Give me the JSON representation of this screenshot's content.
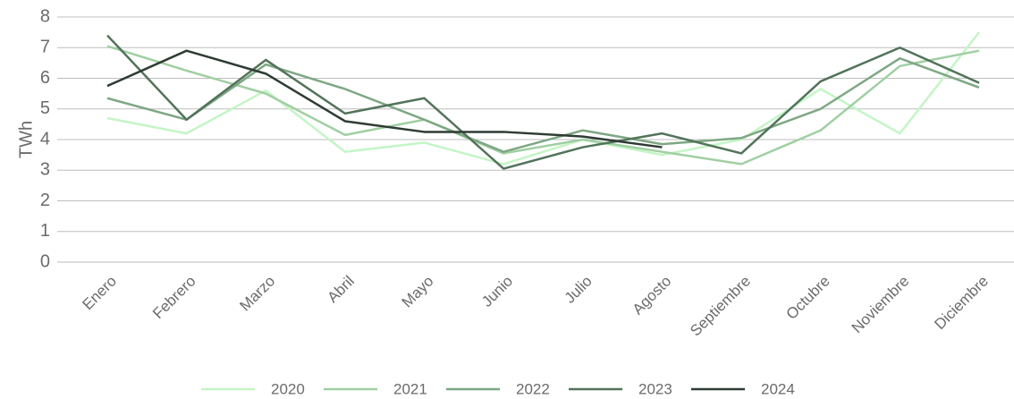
{
  "chart_data": {
    "type": "line",
    "y_label": "TWh",
    "categories": [
      "Enero",
      "Febrero",
      "Marzo",
      "Abril",
      "Mayo",
      "Junio",
      "Julio",
      "Agosto",
      "Septiembre",
      "Octubre",
      "Noviembre",
      "Diciembre"
    ],
    "series": [
      {
        "name": "2020",
        "color": "#c4f5c6",
        "values": [
          4.7,
          4.2,
          5.6,
          3.6,
          3.9,
          3.2,
          4.0,
          3.5,
          4.0,
          5.65,
          4.2,
          7.5
        ]
      },
      {
        "name": "2021",
        "color": "#a0cfa2",
        "values": [
          7.05,
          6.25,
          5.5,
          4.15,
          4.65,
          3.55,
          4.0,
          3.6,
          3.2,
          4.3,
          6.4,
          6.9
        ]
      },
      {
        "name": "2022",
        "color": "#7ea783",
        "values": [
          5.35,
          4.65,
          6.45,
          5.65,
          4.65,
          3.6,
          4.3,
          3.85,
          4.05,
          5.0,
          6.65,
          5.7
        ]
      },
      {
        "name": "2023",
        "color": "#52735a",
        "values": [
          7.4,
          4.65,
          6.6,
          4.85,
          5.35,
          3.05,
          3.75,
          4.2,
          3.55,
          5.9,
          7.0,
          5.85
        ]
      },
      {
        "name": "2024",
        "color": "#2e3c33",
        "values": [
          5.75,
          6.9,
          6.15,
          4.6,
          4.25,
          4.25,
          4.1,
          3.75,
          null,
          null,
          null,
          null
        ]
      }
    ],
    "ylim": [
      0,
      8
    ],
    "yticks": [
      0,
      1,
      2,
      3,
      4,
      5,
      6,
      7,
      8
    ],
    "grid": true,
    "legend": "bottom"
  }
}
